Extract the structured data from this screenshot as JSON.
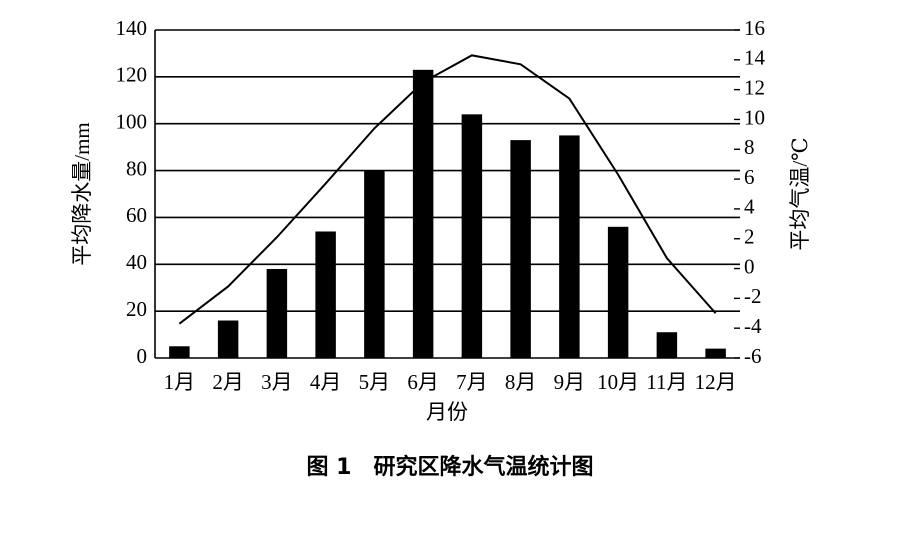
{
  "chart_data": {
    "type": "bar",
    "title": "图 1　研究区降水气温统计图",
    "x_label": "月份",
    "y_label": "平均降水量/mm",
    "y2_label": "平均气温/℃",
    "categories": [
      "1月",
      "2月",
      "3月",
      "4月",
      "5月",
      "6月",
      "7月",
      "8月",
      "9月",
      "10月",
      "11月",
      "12月"
    ],
    "series": [
      {
        "type": "bar",
        "color": "#000000",
        "values": [
          5,
          16,
          38,
          54,
          80,
          123,
          104,
          93,
          95,
          56,
          11,
          4
        ]
      },
      {
        "type": "line",
        "axis": "y2",
        "color": "#000000",
        "values": [
          -3.7,
          -1.2,
          2.1,
          5.7,
          9.4,
          12.5,
          14.3,
          13.7,
          11.4,
          6.3,
          0.7,
          -3.0
        ]
      }
    ],
    "ylim": [
      0,
      140
    ],
    "yticks": [
      0,
      20,
      40,
      60,
      80,
      100,
      120,
      140
    ],
    "y2lim": [
      -6,
      16
    ],
    "y2ticks": [
      -6,
      -4,
      -2,
      0,
      2,
      4,
      6,
      8,
      10,
      12,
      14,
      16
    ],
    "grid": true
  }
}
